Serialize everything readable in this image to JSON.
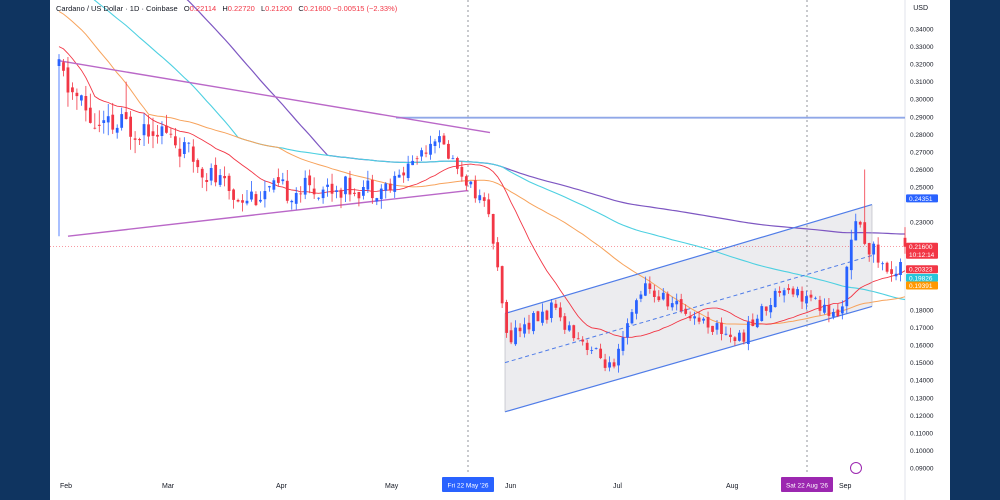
{
  "header": {
    "symbol": "Cardano / US Dollar · 1D · Coinbase",
    "o_label": "O",
    "o_value": "0.22114",
    "h_label": "H",
    "h_value": "0.22720",
    "l_label": "L",
    "l_value": "0.21200",
    "c_label": "C",
    "c_value": "0.21600",
    "change": "−0.00515 (−2.33%)"
  },
  "currency": "USD",
  "colors": {
    "up": "#2962ff",
    "down": "#f23645",
    "ma_fast": "#f23645",
    "ma_mid": "#f7a35c",
    "ma_slow": "#4dd0e1",
    "ma_long": "#7e57c2",
    "triangle": "#ba68c8",
    "channel": "#4f7ce8",
    "hline": "#90a8e8"
  },
  "chart_data": {
    "type": "candlestick",
    "y_axis": {
      "ticks": [
        "0.34000",
        "0.33000",
        "0.32000",
        "0.31000",
        "0.30000",
        "0.29000",
        "0.28000",
        "0.27000",
        "0.26000",
        "0.25000",
        "0.23000",
        "0.18000",
        "0.17000",
        "0.16000",
        "0.15000",
        "0.14000",
        "0.13000",
        "0.12000",
        "0.11000",
        "0.10000",
        "0.09000"
      ],
      "ylim": [
        0.09,
        0.345
      ]
    },
    "x_axis": {
      "ticks": [
        "Feb",
        "Mar",
        "Apr",
        "May",
        "Jun",
        "Jul",
        "Aug",
        "Sep"
      ],
      "crosshair_labels": [
        "Fri 22 May '26",
        "Sat 22 Aug '26"
      ]
    },
    "price_labels": [
      {
        "value": "0.24351",
        "color": "#2962ff"
      },
      {
        "value": "0.21600",
        "color": "#f23645",
        "sub": "10:12:14"
      },
      {
        "value": "0.20323",
        "color": "#f23645"
      },
      {
        "value": "0.19826",
        "color": "#26c6da"
      },
      {
        "value": "0.19391",
        "color": "#ff9800"
      }
    ],
    "current_price": 0.216,
    "resistance_line": 0.2895,
    "segments": [
      {
        "days": 10,
        "start": 0.318,
        "end": 0.282,
        "vol": 0.016
      },
      {
        "days": 12,
        "start": 0.282,
        "end": 0.287,
        "vol": 0.015
      },
      {
        "days": 18,
        "start": 0.287,
        "end": 0.245,
        "vol": 0.011
      },
      {
        "days": 20,
        "start": 0.245,
        "end": 0.25,
        "vol": 0.011
      },
      {
        "days": 15,
        "start": 0.25,
        "end": 0.25,
        "vol": 0.01
      },
      {
        "days": 10,
        "start": 0.25,
        "end": 0.28,
        "vol": 0.008
      },
      {
        "days": 12,
        "start": 0.28,
        "end": 0.236,
        "vol": 0.006
      },
      {
        "days": 4,
        "start": 0.236,
        "end": 0.165,
        "vol": 0.006
      },
      {
        "days": 10,
        "start": 0.165,
        "end": 0.18,
        "vol": 0.008
      },
      {
        "days": 14,
        "start": 0.18,
        "end": 0.145,
        "vol": 0.006
      },
      {
        "days": 6,
        "start": 0.145,
        "end": 0.193,
        "vol": 0.008
      },
      {
        "days": 22,
        "start": 0.193,
        "end": 0.163,
        "vol": 0.007
      },
      {
        "days": 10,
        "start": 0.163,
        "end": 0.195,
        "vol": 0.007
      },
      {
        "days": 12,
        "start": 0.195,
        "end": 0.175,
        "vol": 0.007
      },
      {
        "days": 4,
        "start": 0.175,
        "end": 0.228,
        "vol": 0.01
      },
      {
        "days": 8,
        "start": 0.228,
        "end": 0.198,
        "vol": 0.008
      },
      {
        "days": 3,
        "start": 0.198,
        "end": 0.216,
        "vol": 0.008
      }
    ]
  }
}
